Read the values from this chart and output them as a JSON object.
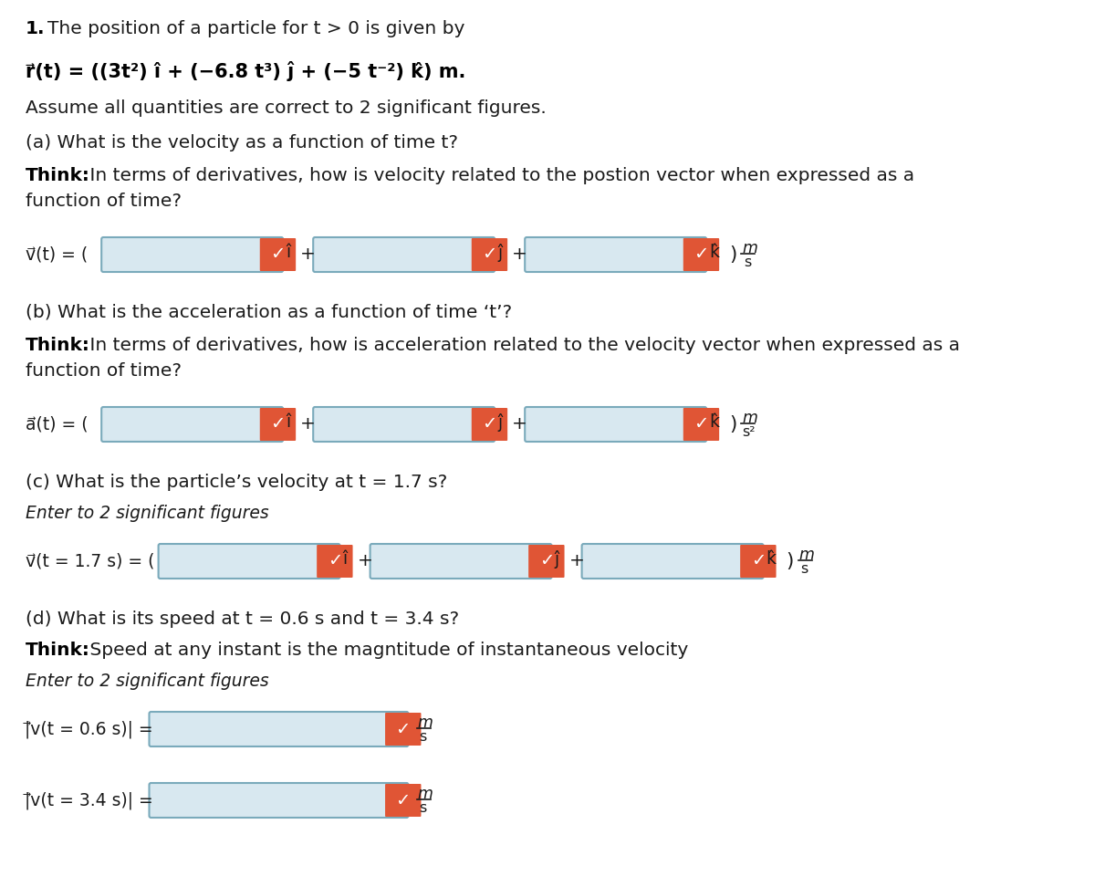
{
  "title_num": "1.",
  "line1": "The position of a particle for t > 0 is given by",
  "eq_line": "r⃗(t) = ((3t²) î + (−6.8 t³) ĵ + (−5 t⁻²) k̂) m.",
  "line3": "Assume all quantities are correct to 2 significant figures.",
  "part_a_q": "(a) What is the velocity as a function of time t?",
  "part_a_think1": "Think:",
  "part_a_think2": " In terms of derivatives, how is velocity related to the postion vector when expressed as a",
  "part_a_think3": "function of time?",
  "part_b_q": "(b) What is the acceleration as a function of time ‘t’?",
  "part_b_think1": "Think:",
  "part_b_think2": " In terms of derivatives, how is acceleration related to the velocity vector when expressed as a",
  "part_b_think3": "function of time?",
  "part_c_q": "(c) What is the particle’s velocity at t = 1.7 s?",
  "part_c_enter": "Enter to 2 significant figures",
  "part_d_q": "(d) What is its speed at t = 0.6 s and t = 3.4 s?",
  "part_d_think1": "Think:",
  "part_d_think2": " Speed at any instant is the magntitude of instantaneous velocity",
  "part_d_enter": "Enter to 2 significant figures",
  "input_bg": "#d8e8f0",
  "input_border": "#7aaabb",
  "check_bg": "#e05535",
  "check_color": "#ffffff",
  "background": "#ffffff",
  "text_color": "#1a1a1a",
  "bold_color": "#000000"
}
